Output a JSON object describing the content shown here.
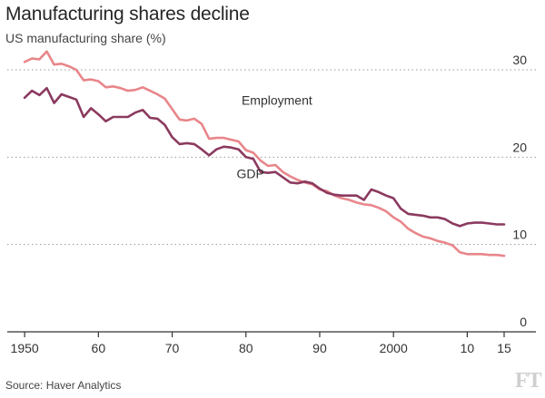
{
  "header": {
    "title": "Manufacturing shares decline",
    "subtitle": "US manufacturing share (%)"
  },
  "footer": {
    "source": "Source: Haver Analytics",
    "logo": "FT"
  },
  "colors": {
    "employment": "#e8868a",
    "gdp": "#8b3a5f",
    "gridline": "#9a9a9a",
    "axis": "#333333"
  },
  "chart_data": {
    "type": "line",
    "title": "Manufacturing shares decline",
    "subtitle": "US manufacturing share (%)",
    "xlabel": "",
    "ylabel": "",
    "xlim": [
      1949,
      2015
    ],
    "ylim": [
      0,
      30
    ],
    "y_ticks": [
      0,
      10,
      20,
      30
    ],
    "y_tick_labels": [
      "0",
      "10",
      "20",
      "30"
    ],
    "x_ticks": [
      1950,
      1960,
      1970,
      1980,
      1990,
      2000,
      2010,
      2015
    ],
    "x_tick_labels": [
      "1950",
      "60",
      "70",
      "80",
      "90",
      "2000",
      "10",
      "15"
    ],
    "grid": "horizontal-dotted",
    "series": [
      {
        "name": "Employment",
        "x": [
          1950,
          1951,
          1952,
          1953,
          1954,
          1955,
          1956,
          1957,
          1958,
          1959,
          1960,
          1961,
          1962,
          1963,
          1964,
          1965,
          1966,
          1967,
          1968,
          1969,
          1970,
          1971,
          1972,
          1973,
          1974,
          1975,
          1976,
          1977,
          1978,
          1979,
          1980,
          1981,
          1982,
          1983,
          1984,
          1985,
          1986,
          1987,
          1988,
          1989,
          1990,
          1991,
          1992,
          1993,
          1994,
          1995,
          1996,
          1997,
          1998,
          1999,
          2000,
          2001,
          2002,
          2003,
          2004,
          2005,
          2006,
          2007,
          2008,
          2009,
          2010,
          2011,
          2012,
          2013,
          2014,
          2015
        ],
        "values": [
          30.9,
          31.3,
          31.2,
          32.1,
          30.6,
          30.7,
          30.4,
          30.0,
          28.8,
          28.9,
          28.7,
          28.0,
          28.1,
          27.9,
          27.6,
          27.7,
          28.0,
          27.6,
          27.2,
          26.7,
          25.5,
          24.3,
          24.2,
          24.4,
          23.8,
          22.1,
          22.2,
          22.2,
          22.0,
          21.8,
          20.8,
          20.5,
          19.6,
          19.0,
          19.1,
          18.3,
          17.8,
          17.4,
          17.1,
          16.9,
          16.3,
          16.1,
          15.6,
          15.3,
          15.1,
          14.8,
          14.6,
          14.5,
          14.2,
          13.8,
          13.1,
          12.6,
          11.8,
          11.3,
          10.9,
          10.7,
          10.4,
          10.2,
          9.9,
          9.1,
          8.9,
          8.9,
          8.9,
          8.8,
          8.8,
          8.7
        ]
      },
      {
        "name": "GDP",
        "x": [
          1950,
          1951,
          1952,
          1953,
          1954,
          1955,
          1956,
          1957,
          1958,
          1959,
          1960,
          1961,
          1962,
          1963,
          1964,
          1965,
          1966,
          1967,
          1968,
          1969,
          1970,
          1971,
          1972,
          1973,
          1974,
          1975,
          1976,
          1977,
          1978,
          1979,
          1980,
          1981,
          1982,
          1983,
          1984,
          1985,
          1986,
          1987,
          1988,
          1989,
          1990,
          1991,
          1992,
          1993,
          1994,
          1995,
          1996,
          1997,
          1998,
          1999,
          2000,
          2001,
          2002,
          2003,
          2004,
          2005,
          2006,
          2007,
          2008,
          2009,
          2010,
          2011,
          2012,
          2013,
          2014,
          2015
        ],
        "values": [
          26.8,
          27.6,
          27.1,
          27.9,
          26.2,
          27.2,
          26.9,
          26.6,
          24.6,
          25.6,
          24.9,
          24.1,
          24.6,
          24.6,
          24.6,
          25.1,
          25.4,
          24.5,
          24.4,
          23.7,
          22.3,
          21.5,
          21.6,
          21.5,
          20.9,
          20.2,
          20.9,
          21.2,
          21.1,
          20.9,
          20.0,
          19.8,
          18.3,
          18.2,
          18.3,
          17.7,
          17.1,
          17.0,
          17.2,
          17.0,
          16.4,
          15.9,
          15.7,
          15.6,
          15.6,
          15.6,
          15.1,
          16.3,
          16.0,
          15.6,
          15.3,
          14.1,
          13.5,
          13.4,
          13.3,
          13.1,
          13.1,
          12.9,
          12.4,
          12.1,
          12.4,
          12.5,
          12.5,
          12.4,
          12.3,
          12.3
        ]
      }
    ],
    "annotations": [
      {
        "text": "Employment",
        "series": "Employment"
      },
      {
        "text": "GDP",
        "series": "GDP"
      }
    ]
  }
}
